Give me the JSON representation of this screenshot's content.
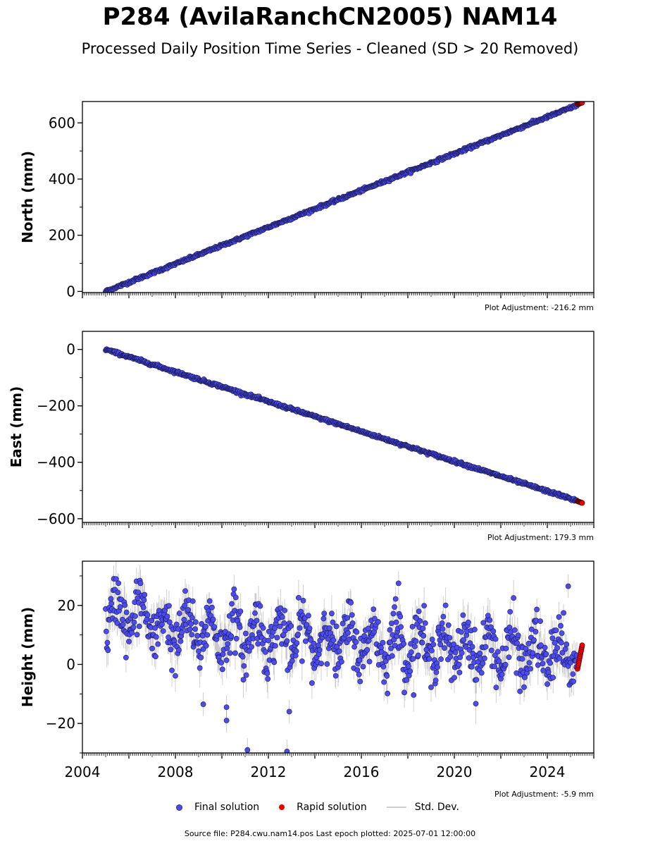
{
  "title": "P284 (AvilaRanchCN2005) NAM14",
  "subtitle": "Processed Daily Position Time Series - Cleaned (SD > 20 Removed)",
  "source_note": "Source file: P284.cwu.nam14.pos  Last epoch plotted: 2025-07-01 12:00:00",
  "legend": {
    "final": "Final solution",
    "rapid": "Rapid solution",
    "std": "Std. Dev."
  },
  "colors": {
    "final": "#4c4cf0",
    "final_edge": "#1a1a55",
    "rapid": "#ee0000",
    "std": "#555555"
  },
  "chart_data": [
    {
      "type": "scatter",
      "ylabel": "North (mm)",
      "adjustment": "Plot Adjustment: -216.2 mm",
      "xlim": [
        2004.0,
        2026.0
      ],
      "ylim": [
        -4,
        676
      ],
      "yticks": [
        0,
        200,
        400,
        600
      ],
      "x_ticklabels": [],
      "trend": {
        "x_start": 2005.0,
        "y_start": 0,
        "x_end": 2025.5,
        "y_end": 670
      },
      "noise_mm": 2.5,
      "rapid": {
        "x_start": 2025.3,
        "x_end": 2025.5,
        "y_start": 666,
        "y_end": 672
      }
    },
    {
      "type": "scatter",
      "ylabel": "East (mm)",
      "adjustment": "Plot Adjustment: 179.3 mm",
      "xlim": [
        2004.0,
        2026.0
      ],
      "ylim": [
        -613,
        64
      ],
      "yticks": [
        0,
        -200,
        -400,
        -600
      ],
      "x_ticklabels": [],
      "trend": {
        "x_start": 2005.0,
        "y_start": 0,
        "x_end": 2025.5,
        "y_end": -542
      },
      "noise_mm": 2.5,
      "rapid": {
        "x_start": 2025.3,
        "x_end": 2025.5,
        "y_start": -538,
        "y_end": -544
      }
    },
    {
      "type": "scatter",
      "ylabel": "Height (mm)",
      "adjustment": "Plot Adjustment: -5.9 mm",
      "xlim": [
        2004.0,
        2026.0
      ],
      "ylim": [
        -30,
        35
      ],
      "yticks": [
        20,
        0,
        -20
      ],
      "x_ticklabels": [
        "2004",
        "2008",
        "2012",
        "2016",
        "2020",
        "2024"
      ],
      "trend": {
        "x_start": 2005.0,
        "y_start": 13,
        "x_end": 2025.5,
        "y_end": 3
      },
      "seasonal_amplitude_mm": 6,
      "noise_mm": 4.5,
      "outliers": [
        {
          "x": 2009.2,
          "y": -13.5
        },
        {
          "x": 2010.2,
          "y": -14.5
        },
        {
          "x": 2010.2,
          "y": -19
        },
        {
          "x": 2011.1,
          "y": -29
        },
        {
          "x": 2012.8,
          "y": -29.5
        },
        {
          "x": 2012.9,
          "y": -16
        },
        {
          "x": 2017.6,
          "y": 27.5
        },
        {
          "x": 2024.9,
          "y": 26.5
        }
      ],
      "rapid": {
        "x_start": 2025.3,
        "x_end": 2025.5,
        "y_min": -1.5,
        "y_max": 6.5
      }
    }
  ]
}
